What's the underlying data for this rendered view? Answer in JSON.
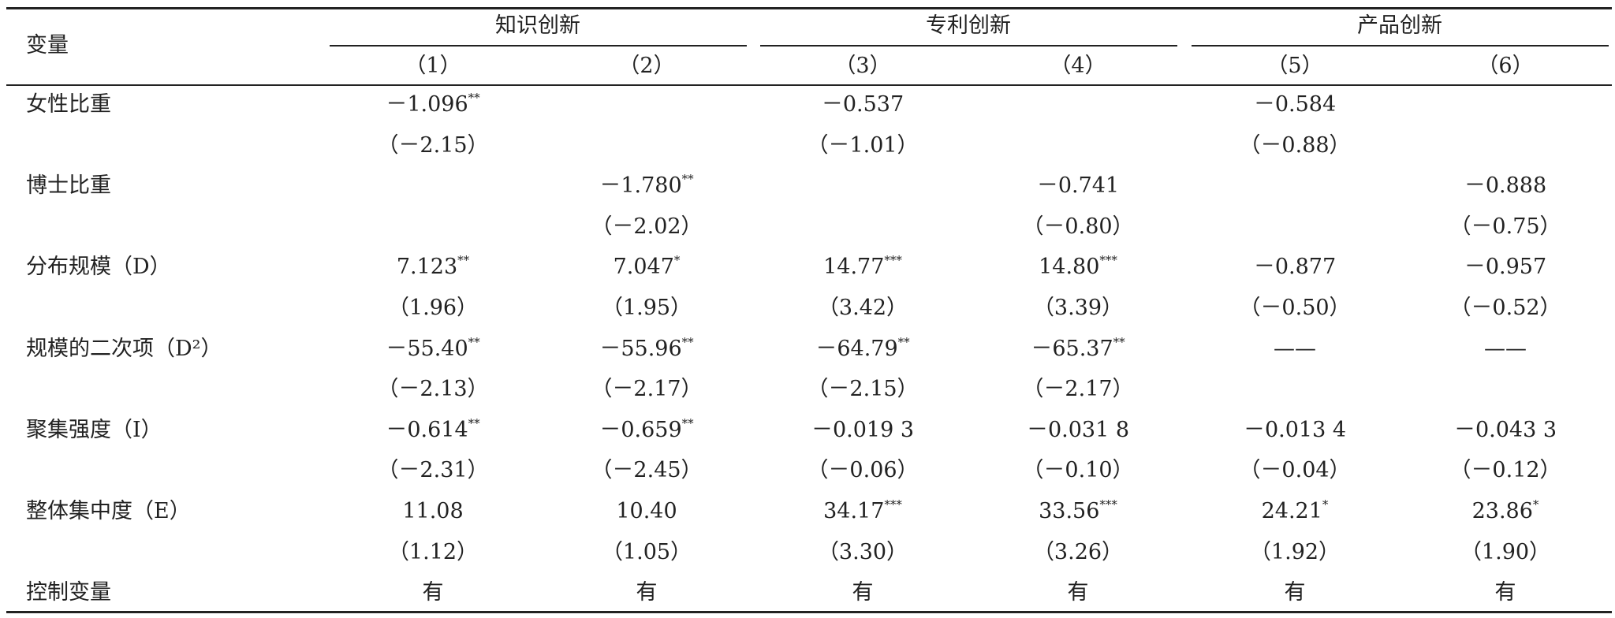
{
  "header": {
    "corner": "变量",
    "groups": [
      "知识创新",
      "专利创新",
      "产品创新"
    ],
    "columns": [
      "（1）",
      "（2）",
      "（3）",
      "（4）",
      "（5）",
      "（6）"
    ]
  },
  "rows": [
    {
      "label": "女性比重",
      "values": [
        {
          "text": "－1.096",
          "sup": "**"
        },
        null,
        {
          "text": "－0.537"
        },
        null,
        {
          "text": "－0.584"
        },
        null
      ],
      "t_stats": [
        "（－2.15）",
        null,
        "（－1.01）",
        null,
        "（－0.88）",
        null
      ]
    },
    {
      "label": "博士比重",
      "values": [
        null,
        {
          "text": "－1.780",
          "sup": "**"
        },
        null,
        {
          "text": "－0.741"
        },
        null,
        {
          "text": "－0.888"
        }
      ],
      "t_stats": [
        null,
        "（－2.02）",
        null,
        "（－0.80）",
        null,
        "（－0.75）"
      ]
    },
    {
      "label": "分布规模（D）",
      "values": [
        {
          "text": "7.123",
          "sup": "**"
        },
        {
          "text": "7.047",
          "sup": "*"
        },
        {
          "text": "14.77",
          "sup": "***"
        },
        {
          "text": "14.80",
          "sup": "***"
        },
        {
          "text": "－0.877"
        },
        {
          "text": "－0.957"
        }
      ],
      "t_stats": [
        "（1.96）",
        "（1.95）",
        "（3.42）",
        "（3.39）",
        "（－0.50）",
        "（－0.52）"
      ]
    },
    {
      "label": "规模的二次项（D²）",
      "values": [
        {
          "text": "－55.40",
          "sup": "**"
        },
        {
          "text": "－55.96",
          "sup": "**"
        },
        {
          "text": "－64.79",
          "sup": "**"
        },
        {
          "text": "－65.37",
          "sup": "**"
        },
        {
          "text": "——"
        },
        {
          "text": "——"
        }
      ],
      "t_stats": [
        "（－2.13）",
        "（－2.17）",
        "（－2.15）",
        "（－2.17）",
        null,
        null
      ]
    },
    {
      "label": "聚集强度（I）",
      "values": [
        {
          "text": "－0.614",
          "sup": "**"
        },
        {
          "text": "－0.659",
          "sup": "**"
        },
        {
          "text": "－0.019 3"
        },
        {
          "text": "－0.031 8"
        },
        {
          "text": "－0.013 4"
        },
        {
          "text": "－0.043 3"
        }
      ],
      "t_stats": [
        "（－2.31）",
        "（－2.45）",
        "（－0.06）",
        "（－0.10）",
        "（－0.04）",
        "（－0.12）"
      ]
    },
    {
      "label": "整体集中度（E）",
      "values": [
        {
          "text": "11.08"
        },
        {
          "text": "10.40"
        },
        {
          "text": "34.17",
          "sup": "***"
        },
        {
          "text": "33.56",
          "sup": "***"
        },
        {
          "text": "24.21",
          "sup": "*"
        },
        {
          "text": "23.86",
          "sup": "*"
        }
      ],
      "t_stats": [
        "（1.12）",
        "（1.05）",
        "（3.30）",
        "（3.26）",
        "（1.92）",
        "（1.90）"
      ]
    },
    {
      "label": "控制变量",
      "values": [
        {
          "text": "有"
        },
        {
          "text": "有"
        },
        {
          "text": "有"
        },
        {
          "text": "有"
        },
        {
          "text": "有"
        },
        {
          "text": "有"
        }
      ]
    }
  ]
}
